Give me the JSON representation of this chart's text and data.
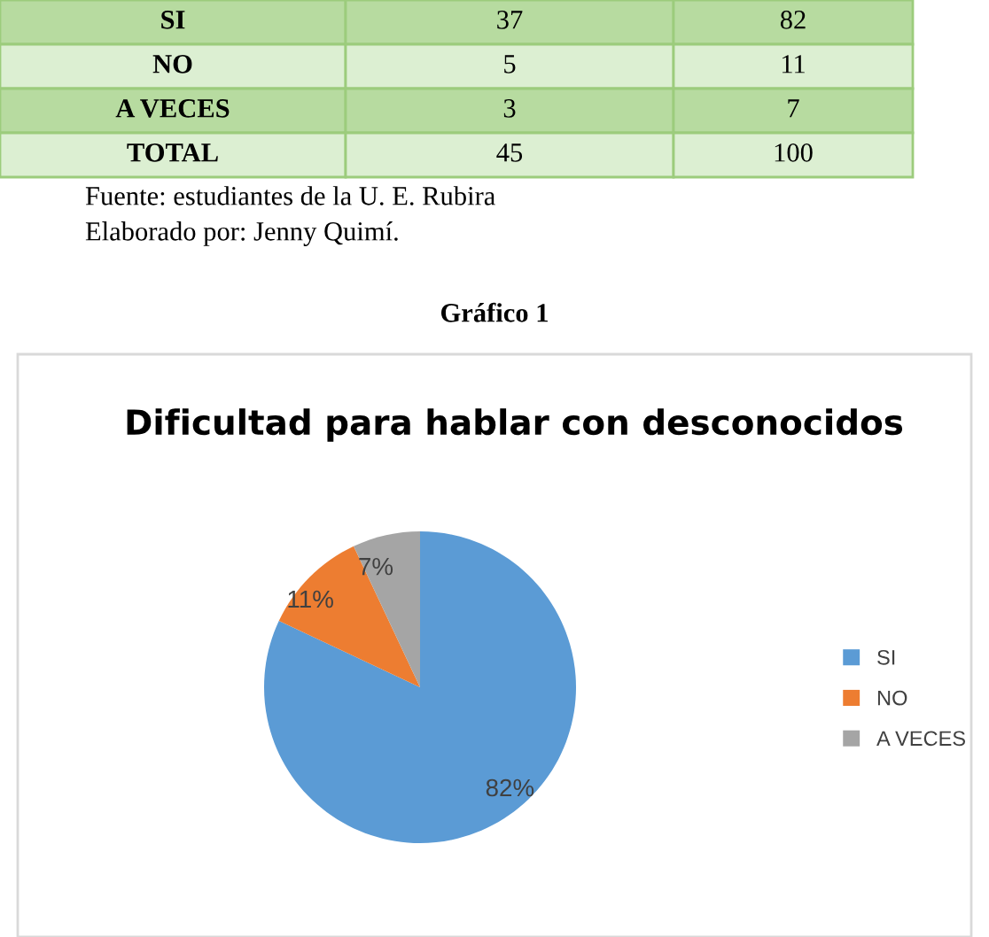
{
  "chart_data": {
    "type": "pie",
    "title": "Dificultad para hablar con desconocidos",
    "categories": [
      "SI",
      "NO",
      "A VECES"
    ],
    "values": [
      82,
      11,
      7
    ],
    "colors": [
      "#5b9bd5",
      "#ed7d31",
      "#a5a5a5"
    ],
    "value_labels": [
      "82%",
      "11%",
      "7%"
    ],
    "legend": "right",
    "annotations": [
      "SI",
      "37",
      "82",
      "NO",
      "5",
      "11",
      "A VECES",
      "3",
      "7",
      "TOTAL",
      "45",
      "100",
      "Fuente: estudiantes de la U. E. Rubira",
      "Elaborado por: Jenny Quimí.",
      "Gráfico 1"
    ]
  }
}
